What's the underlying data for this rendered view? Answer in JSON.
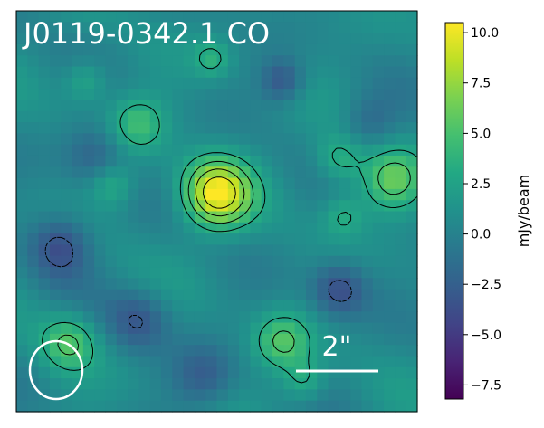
{
  "chart_data": {
    "type": "heatmap",
    "title": "J0119-0342.1 CO",
    "colormap": "viridis",
    "colorbar": {
      "label": "mJy/beam",
      "vmin": -8.2,
      "vmax": 10.5,
      "ticks": [
        -7.5,
        -5.0,
        -2.5,
        0.0,
        2.5,
        5.0,
        7.5,
        10.0
      ],
      "tick_labels": [
        "−7.5",
        "−5.0",
        "−2.5",
        "0.0",
        "2.5",
        "5.0",
        "7.5",
        "10.0"
      ]
    },
    "grid": false,
    "map_extent_arcsec": [
      -4.6,
      4.6,
      -4.6,
      4.6
    ],
    "beam": {
      "major_arcsec": 1.25,
      "minor_arcsec": 1.2
    },
    "scale_bar": {
      "length_arcsec": 2,
      "label": "2\""
    },
    "peak": {
      "x_arcsec": 0.0,
      "y_arcsec": 0.4,
      "value": 10.3
    },
    "sources": [
      {
        "name": "central",
        "x": 0.0,
        "y": 0.4,
        "amp": 9.5,
        "sigma": 0.55
      },
      {
        "name": "ne",
        "x": 4.0,
        "y": 0.7,
        "amp": 5.0,
        "sigma": 0.5
      },
      {
        "name": "sw",
        "x": -3.4,
        "y": -3.0,
        "amp": 4.5,
        "sigma": 0.45
      },
      {
        "name": "s",
        "x": 1.5,
        "y": -3.0,
        "amp": 4.5,
        "sigma": 0.45
      },
      {
        "name": "nw",
        "x": -1.8,
        "y": 2.0,
        "amp": 3.8,
        "sigma": 0.45
      },
      {
        "name": "e",
        "x": 2.8,
        "y": 1.2,
        "amp": 3.5,
        "sigma": 0.4
      },
      {
        "name": "w",
        "x": -2.4,
        "y": 0.6,
        "amp": 3.0,
        "sigma": 0.35
      },
      {
        "name": "n",
        "x": -0.1,
        "y": 3.5,
        "amp": 2.8,
        "sigma": 0.3
      },
      {
        "name": "se",
        "x": 2.9,
        "y": -0.1,
        "amp": 2.8,
        "sigma": 0.35
      },
      {
        "name": "ssw",
        "x": 2.0,
        "y": -3.9,
        "amp": 3.0,
        "sigma": 0.35
      },
      {
        "name": "nnw",
        "x": -3.0,
        "y": 3.0,
        "amp": 2.8,
        "sigma": 0.35
      },
      {
        "name": "hole_w",
        "x": -3.6,
        "y": -0.8,
        "amp": -4.5,
        "sigma": 0.5
      },
      {
        "name": "hole_se",
        "x": 2.8,
        "y": -1.8,
        "amp": -4.5,
        "sigma": 0.45
      },
      {
        "name": "hole_n",
        "x": 1.5,
        "y": 3.0,
        "amp": -3.8,
        "sigma": 0.35
      },
      {
        "name": "hole_sw",
        "x": -1.8,
        "y": -2.5,
        "amp": -3.5,
        "sigma": 0.5
      },
      {
        "name": "hole_nw",
        "x": -2.8,
        "y": 1.3,
        "amp": -3.0,
        "sigma": 0.5
      },
      {
        "name": "hole_s",
        "x": -0.3,
        "y": -3.8,
        "amp": -3.0,
        "sigma": 0.5
      },
      {
        "name": "hole_e",
        "x": 3.5,
        "y": 2.0,
        "amp": -2.5,
        "sigma": 0.45
      }
    ],
    "contour_levels": [
      -3.0,
      3.0,
      5.0,
      7.0,
      9.0
    ]
  }
}
